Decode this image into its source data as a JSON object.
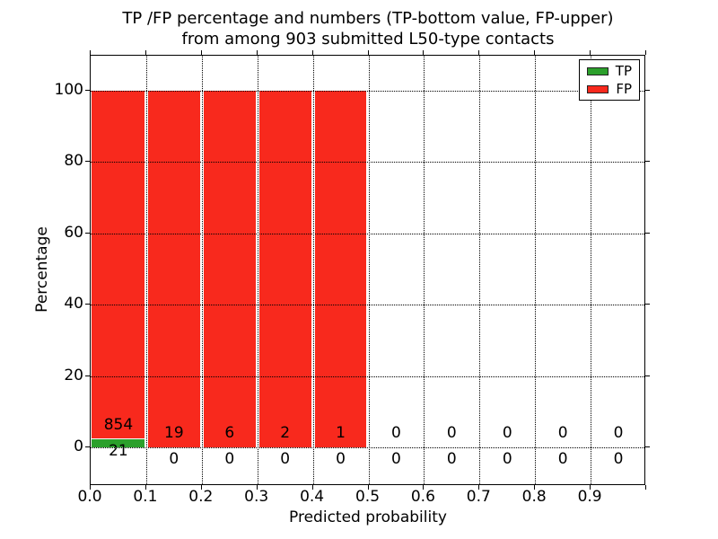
{
  "title": {
    "line1": "TP /FP percentage and numbers (TP-bottom value, FP-upper)",
    "line2": "from among 903 submitted L50-type contacts"
  },
  "axes": {
    "x_label": "Predicted probability",
    "y_label": "Percentage",
    "x_tick_labels": [
      "0.0",
      "0.1",
      "0.2",
      "0.3",
      "0.4",
      "0.5",
      "0.6",
      "0.7",
      "0.8",
      "0.9"
    ],
    "y_tick_labels": [
      "0",
      "20",
      "40",
      "60",
      "80",
      "100"
    ]
  },
  "legend": {
    "items": [
      {
        "label": "TP",
        "color": "#2ca02c"
      },
      {
        "label": "FP",
        "color": "#f8291d"
      }
    ]
  },
  "chart_data": {
    "type": "bar",
    "stacked": true,
    "title": "TP /FP percentage and numbers (TP-bottom value, FP-upper) from among 903 submitted L50-type contacts",
    "xlabel": "Predicted probability",
    "ylabel": "Percentage",
    "total_contacts": 903,
    "bin_starts": [
      0.0,
      0.1,
      0.2,
      0.3,
      0.4,
      0.5,
      0.6,
      0.7,
      0.8,
      0.9
    ],
    "bin_width": 0.1,
    "series": [
      {
        "name": "TP",
        "color": "#2ca02c",
        "counts": [
          21,
          0,
          0,
          0,
          0,
          0,
          0,
          0,
          0,
          0
        ],
        "percent": [
          2.4,
          0,
          0,
          0,
          0,
          0,
          0,
          0,
          0,
          0
        ]
      },
      {
        "name": "FP",
        "color": "#f8291d",
        "counts": [
          854,
          19,
          6,
          2,
          1,
          0,
          0,
          0,
          0,
          0
        ],
        "percent": [
          97.6,
          100,
          100,
          100,
          100,
          0,
          0,
          0,
          0,
          0
        ]
      }
    ],
    "x_ticks": [
      0.0,
      0.1,
      0.2,
      0.3,
      0.4,
      0.5,
      0.6,
      0.7,
      0.8,
      0.9,
      1.0
    ],
    "y_ticks": [
      0,
      20,
      40,
      60,
      80,
      100
    ],
    "xlim": [
      0.0,
      1.0
    ],
    "ylim": [
      -11,
      110
    ],
    "grid": true,
    "legend_position": "upper right"
  }
}
